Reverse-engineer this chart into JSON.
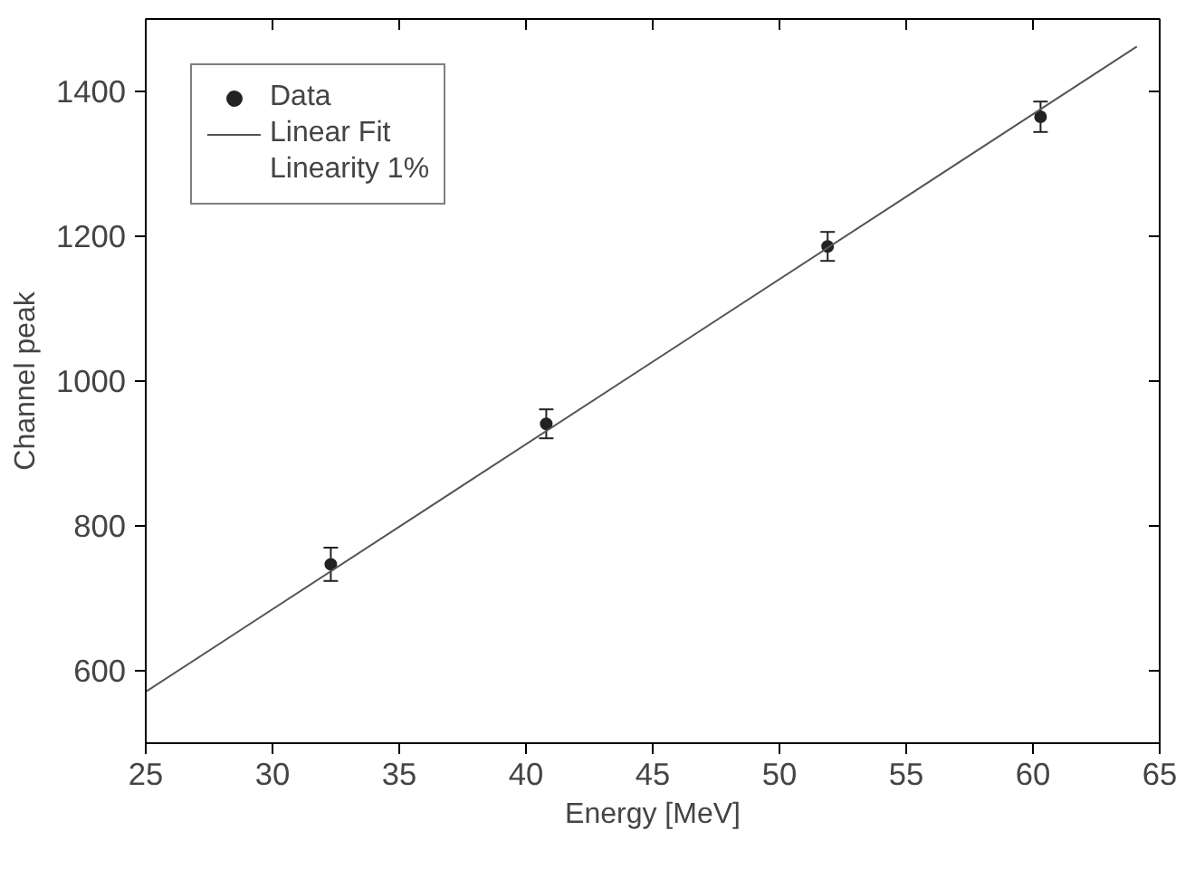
{
  "chart_data": {
    "type": "scatter",
    "xlabel": "Energy [MeV]",
    "ylabel": "Channel peak",
    "xlim": [
      25,
      65
    ],
    "xticks": [
      25,
      30,
      35,
      40,
      45,
      50,
      55,
      60,
      65
    ],
    "ylim": [
      500,
      1500
    ],
    "yticks": [
      600,
      800,
      1000,
      1200,
      1400
    ],
    "grid": false,
    "legend": "top left",
    "annotations": [
      "Linearity 1%"
    ],
    "series": [
      {
        "name": "Data",
        "marker": "circle",
        "color": "#222222",
        "x": [
          32.3,
          40.8,
          51.9,
          60.3
        ],
        "values": [
          747,
          941,
          1186,
          1365
        ],
        "errors": [
          23,
          20,
          20,
          21
        ]
      },
      {
        "name": "Linear Fit",
        "type": "line",
        "color": "#555555",
        "x": [
          25,
          64.1
        ],
        "values": [
          571,
          1462
        ],
        "line_style": "solid",
        "marker": "none"
      }
    ]
  }
}
